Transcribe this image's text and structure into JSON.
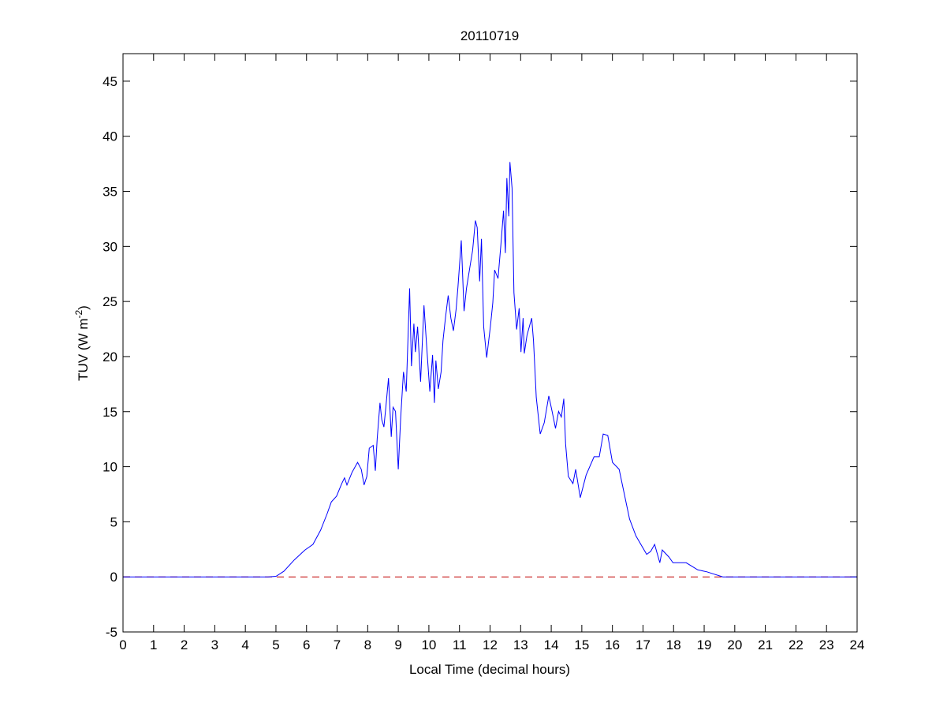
{
  "chart_data": {
    "type": "line",
    "title": "20110719",
    "xlabel": "Local Time (decimal hours)",
    "ylabel": "TUV (W m",
    "ylabel_superscript": "-2",
    "ylabel_suffix": ")",
    "xlim": [
      0,
      24
    ],
    "ylim": [
      -5,
      47.5
    ],
    "xticks": [
      0,
      1,
      2,
      3,
      4,
      5,
      6,
      7,
      8,
      9,
      10,
      11,
      12,
      13,
      14,
      15,
      16,
      17,
      18,
      19,
      20,
      21,
      22,
      23,
      24
    ],
    "yticks": [
      -5,
      0,
      5,
      10,
      15,
      20,
      25,
      30,
      35,
      40,
      45
    ],
    "grid": false,
    "colors": {
      "series": "#0000ff",
      "reference": "#c00000",
      "axis": "#000000"
    },
    "reference_line": {
      "y": 0,
      "style": "dashed"
    },
    "series": [
      {
        "name": "TUV",
        "x": [
          0,
          4.74,
          5.0,
          5.26,
          5.6,
          5.95,
          6.21,
          6.46,
          6.68,
          6.81,
          6.98,
          7.15,
          7.24,
          7.32,
          7.49,
          7.67,
          7.79,
          7.88,
          7.97,
          8.05,
          8.18,
          8.25,
          8.31,
          8.4,
          8.46,
          8.53,
          8.61,
          8.68,
          8.77,
          8.83,
          8.91,
          9.0,
          9.08,
          9.17,
          9.26,
          9.37,
          9.43,
          9.51,
          9.56,
          9.63,
          9.73,
          9.84,
          9.94,
          10.03,
          10.12,
          10.18,
          10.23,
          10.31,
          10.4,
          10.46,
          10.54,
          10.63,
          10.72,
          10.8,
          10.89,
          10.95,
          11.06,
          11.15,
          11.23,
          11.34,
          11.43,
          11.52,
          11.58,
          11.66,
          11.72,
          11.79,
          11.89,
          12.01,
          12.09,
          12.15,
          12.26,
          12.35,
          12.44,
          12.5,
          12.55,
          12.61,
          12.65,
          12.72,
          12.78,
          12.87,
          12.95,
          13.01,
          13.08,
          13.12,
          13.21,
          13.36,
          13.42,
          13.51,
          13.64,
          13.77,
          13.92,
          14.03,
          14.14,
          14.24,
          14.33,
          14.41,
          14.47,
          14.56,
          14.71,
          14.8,
          14.95,
          15.14,
          15.4,
          15.57,
          15.7,
          15.85,
          16.0,
          16.22,
          16.56,
          16.77,
          17.12,
          17.25,
          17.38,
          17.55,
          17.63,
          17.85,
          17.98,
          18.41,
          18.79,
          19.09,
          19.61,
          24
        ],
        "y": [
          0,
          0,
          0.05,
          0.51,
          1.54,
          2.44,
          2.95,
          4.24,
          5.78,
          6.8,
          7.32,
          8.47,
          8.99,
          8.34,
          9.5,
          10.4,
          9.76,
          8.34,
          9.11,
          11.68,
          11.94,
          9.63,
          12.58,
          15.79,
          14.25,
          13.61,
          15.92,
          18.05,
          12.71,
          15.4,
          15.02,
          9.76,
          14.51,
          18.61,
          16.82,
          26.19,
          19.13,
          22.98,
          20.41,
          22.72,
          17.71,
          24.65,
          20.41,
          16.82,
          20.15,
          15.79,
          19.64,
          17.07,
          18.61,
          21.44,
          23.49,
          25.55,
          23.49,
          22.34,
          24.26,
          26.32,
          30.55,
          24.13,
          26.19,
          28.11,
          29.65,
          32.35,
          31.71,
          26.83,
          30.68,
          22.72,
          19.9,
          22.72,
          24.9,
          27.86,
          27.09,
          30.04,
          33.25,
          29.4,
          36.2,
          32.73,
          37.66,
          35.3,
          25.8,
          22.46,
          24.39,
          20.41,
          23.49,
          20.28,
          21.95,
          23.49,
          21.44,
          16.3,
          12.97,
          13.99,
          16.43,
          15.02,
          13.48,
          15.02,
          14.51,
          16.17,
          12.07,
          9.11,
          8.47,
          9.76,
          7.19,
          9.24,
          10.91,
          10.91,
          12.97,
          12.84,
          10.4,
          9.76,
          5.26,
          3.72,
          2.05,
          2.31,
          2.95,
          1.28,
          2.44,
          1.8,
          1.28,
          1.28,
          0.64,
          0.46,
          0,
          0
        ]
      }
    ]
  }
}
